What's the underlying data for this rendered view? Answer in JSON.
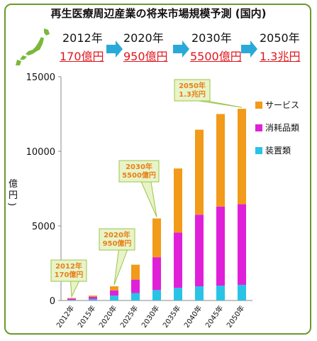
{
  "header": {
    "title": "再生医療周辺産業の将来市場規模予測 (国内)",
    "milestones": [
      {
        "year": "2012年",
        "amount": "170億円"
      },
      {
        "year": "2020年",
        "amount": "950億円"
      },
      {
        "year": "2030年",
        "amount": "5500億円"
      },
      {
        "year": "2050年",
        "amount": "1.3兆円"
      }
    ]
  },
  "chart_data": {
    "type": "bar",
    "stacked": true,
    "categories": [
      "2012年",
      "2015年",
      "2020年",
      "2025年",
      "2030年",
      "2035年",
      "2040年",
      "2045年",
      "2050年"
    ],
    "series": [
      {
        "name": "装置類",
        "color": "#29c3e6",
        "values": [
          40,
          100,
          330,
          500,
          700,
          850,
          950,
          1000,
          1050
        ]
      },
      {
        "name": "消耗品類",
        "color": "#e020d8",
        "values": [
          90,
          150,
          350,
          900,
          2200,
          3700,
          4800,
          5300,
          5400
        ]
      },
      {
        "name": "サービス",
        "color": "#f29a1a",
        "values": [
          40,
          80,
          270,
          1000,
          2600,
          4300,
          5700,
          6200,
          6400
        ]
      }
    ],
    "ylim": [
      0,
      15000
    ],
    "yticks": [
      0,
      5000,
      10000,
      15000
    ],
    "ylabel": [
      "億",
      "円",
      ")"
    ],
    "legend_position": "right",
    "grid": false,
    "callouts": [
      {
        "category": "2012年",
        "lines": [
          "2012年",
          "170億円"
        ]
      },
      {
        "category": "2020年",
        "lines": [
          "2020年",
          "950億円"
        ]
      },
      {
        "category": "2030年",
        "lines": [
          "2030年",
          "5500億円"
        ]
      },
      {
        "category": "2050年",
        "lines": [
          "2050年",
          "1.3兆円"
        ]
      }
    ]
  }
}
